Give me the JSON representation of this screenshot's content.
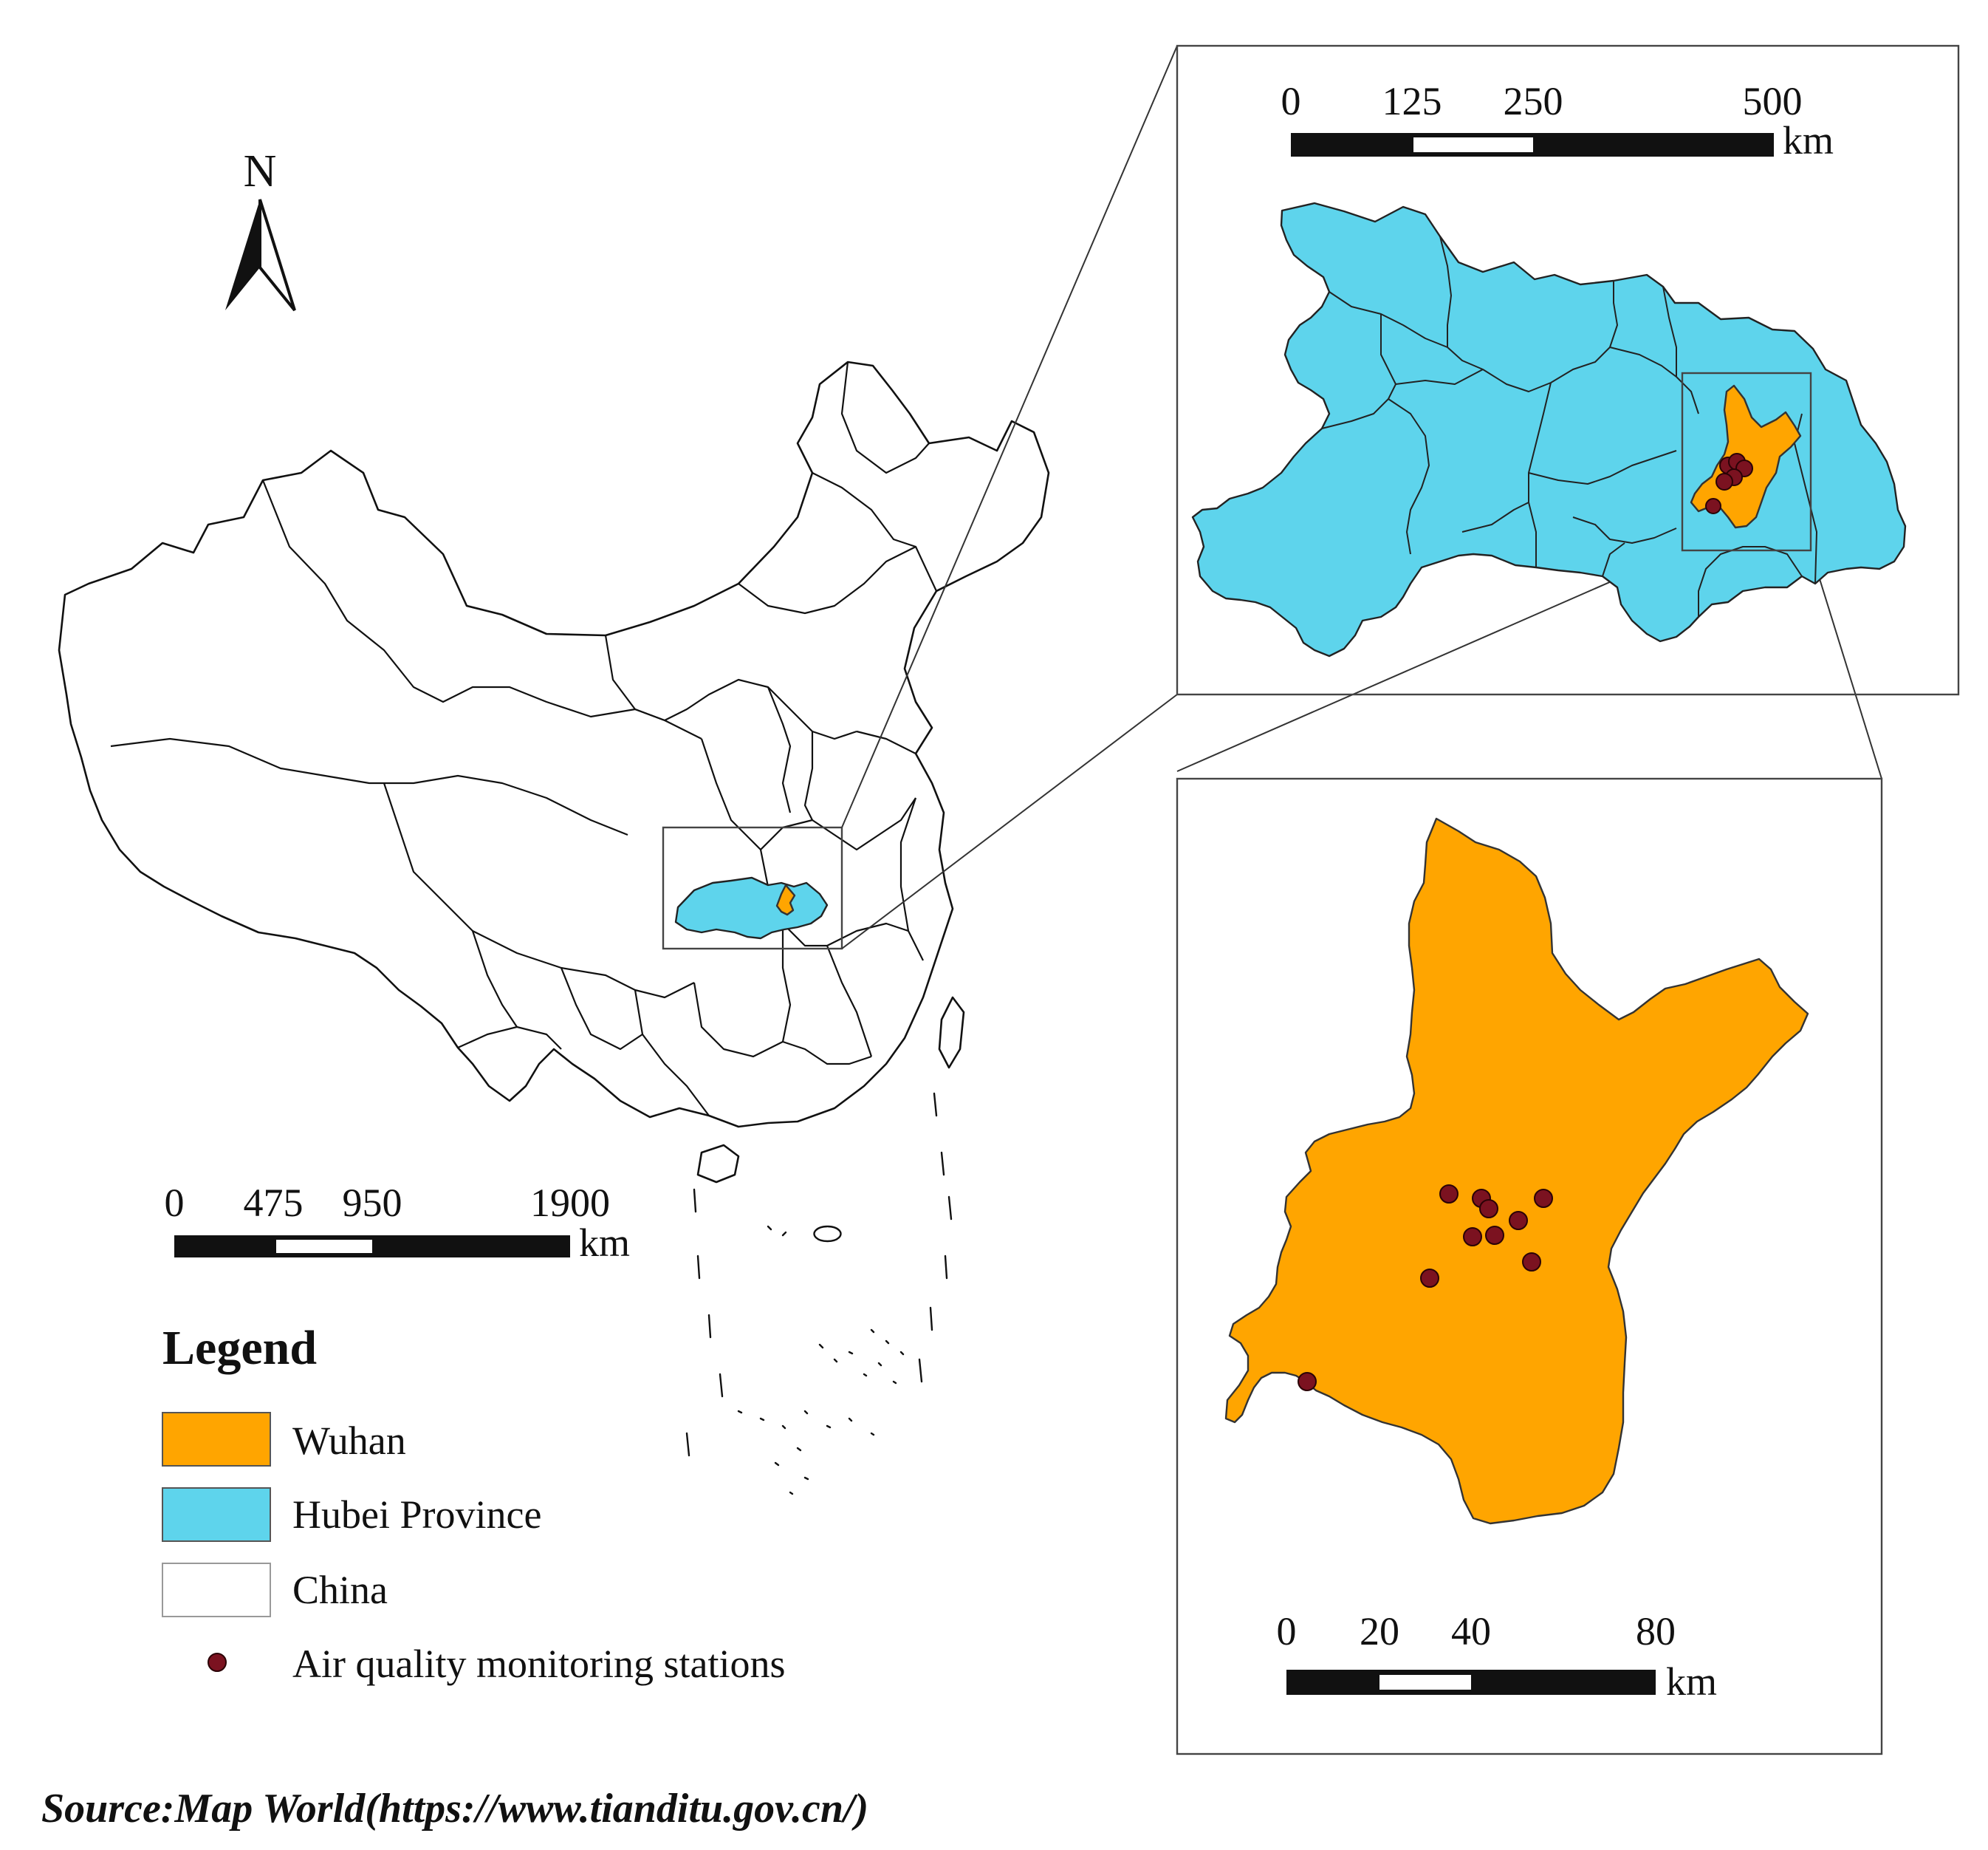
{
  "north_arrow": {
    "label": "N"
  },
  "colors": {
    "wuhan": "#FFA500",
    "hubei": "#5ED4EC",
    "china": "#FFFFFF",
    "station": "#7B1220"
  },
  "scale_bars": {
    "china": {
      "ticks": [
        "0",
        "475",
        "950",
        "1900"
      ],
      "unit": "km"
    },
    "hubei": {
      "ticks": [
        "0",
        "125",
        "250",
        "500"
      ],
      "unit": "km"
    },
    "wuhan": {
      "ticks": [
        "0",
        "20",
        "40",
        "80"
      ],
      "unit": "km"
    }
  },
  "legend": {
    "title": "Legend",
    "items": [
      {
        "label": "Wuhan",
        "color": "#FFA500",
        "symbol": "patch"
      },
      {
        "label": "Hubei Province",
        "color": "#5ED4EC",
        "symbol": "patch"
      },
      {
        "label": "China",
        "color": "#FFFFFF",
        "symbol": "patch"
      },
      {
        "label": "Air quality monitoring stations",
        "color": "#7B1220",
        "symbol": "point"
      }
    ]
  },
  "source": "Source:Map World(https://www.tianditu.gov.cn/)"
}
